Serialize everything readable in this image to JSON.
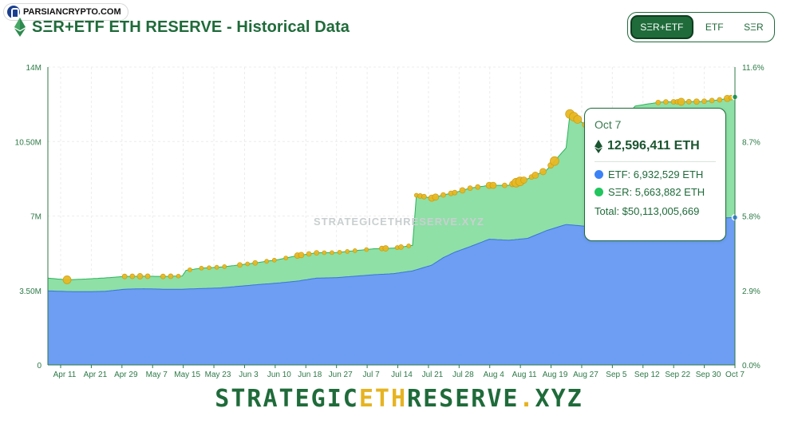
{
  "watermark": {
    "label": "PARSIANCRYPTO.COM",
    "logo_icon": "lock-person-icon"
  },
  "header": {
    "title": "SΞR+ETF ETH RESERVE - Historical Data",
    "icon": "ethereum-icon"
  },
  "toggle": {
    "options": [
      "SΞR+ETF",
      "ETF",
      "SΞR"
    ],
    "active": "SΞR+ETF"
  },
  "tooltip": {
    "date": "Oct 7",
    "total_eth": "12,596,411 ETH",
    "etf_label": "ETF: 6,932,529 ETH",
    "ser_label": "SΞR: 5,663,882 ETH",
    "total_usd": "Total: $50,113,005,669",
    "colors": {
      "etf": "#3b82f6",
      "ser": "#22c55e"
    }
  },
  "footer": {
    "part1": "STRATEGIC",
    "part2": "ETH",
    "part3": "RESERVE",
    "part4": ".",
    "part5": "XYZ"
  },
  "chart_data": {
    "type": "area",
    "watermark_text": "STRATEGICETHRESERVE.XYZ",
    "stacked": true,
    "y_left": {
      "ticks": [
        "0",
        "3.50M",
        "7M",
        "10.50M",
        "14M"
      ],
      "values": [
        0,
        3500000,
        7000000,
        10500000,
        14000000
      ],
      "range": [
        0,
        14000000
      ]
    },
    "y_right": {
      "ticks": [
        "0.0%",
        "2.9%",
        "5.8%",
        "8.7%",
        "11.6%"
      ],
      "values": [
        0.0,
        2.9,
        5.8,
        8.7,
        11.6
      ],
      "range": [
        0,
        11.6
      ]
    },
    "x_ticks": [
      "Apr 11",
      "Apr 21",
      "Apr 29",
      "May 7",
      "May 15",
      "May 23",
      "Jun 3",
      "Jun 10",
      "Jun 18",
      "Jun 27",
      "Jul 7",
      "Jul 14",
      "Jul 21",
      "Jul 28",
      "Aug 4",
      "Aug 11",
      "Aug 19",
      "Aug 27",
      "Sep 5",
      "Sep 12",
      "Sep 22",
      "Sep 30",
      "Oct 7"
    ],
    "x_range": [
      0,
      179
    ],
    "grid": true,
    "colors": {
      "etf": "#6d9ef3",
      "ser": "#8ee0a6",
      "etf_line": "#3b74d9",
      "ser_line": "#2db35a",
      "dot": "#e8b923"
    },
    "series": [
      {
        "name": "ETF",
        "x": [
          0,
          5,
          10,
          15,
          20,
          25,
          30,
          35,
          40,
          45,
          50,
          55,
          60,
          65,
          70,
          75,
          80,
          85,
          90,
          95,
          100,
          103,
          106,
          110,
          115,
          120,
          125,
          130,
          135,
          140,
          145,
          150,
          153,
          156,
          160,
          165,
          170,
          175,
          179
        ],
        "values": [
          3480000,
          3450000,
          3440000,
          3460000,
          3560000,
          3580000,
          3560000,
          3560000,
          3590000,
          3620000,
          3700000,
          3780000,
          3850000,
          3940000,
          4080000,
          4100000,
          4170000,
          4240000,
          4290000,
          4420000,
          4690000,
          5040000,
          5300000,
          5560000,
          5910000,
          5860000,
          5950000,
          6320000,
          6600000,
          6520000,
          6710000,
          6840000,
          6730000,
          6810000,
          6700000,
          6830000,
          6880000,
          6900000,
          6932529
        ]
      },
      {
        "name": "SΞR",
        "x": [
          0,
          5,
          10,
          15,
          20,
          25,
          30,
          35,
          36,
          40,
          45,
          50,
          55,
          60,
          65,
          70,
          75,
          80,
          85,
          90,
          95,
          96,
          100,
          103,
          106,
          110,
          115,
          120,
          125,
          130,
          135,
          136,
          140,
          145,
          150,
          153,
          156,
          160,
          165,
          170,
          175,
          179
        ],
        "values": [
          600000,
          550000,
          600000,
          630000,
          600000,
          590000,
          600000,
          620000,
          880000,
          960000,
          980000,
          1000000,
          1040000,
          1100000,
          1200000,
          1190000,
          1180000,
          1200000,
          1220000,
          1200000,
          1200000,
          3500000,
          3150000,
          2950000,
          2800000,
          2750000,
          2530000,
          2580000,
          2800000,
          2850000,
          3600000,
          5210000,
          4770000,
          4690000,
          4700000,
          5440000,
          5450000,
          5660000,
          5540000,
          5500000,
          5560000,
          5663882
        ]
      }
    ],
    "events": [
      [
        5,
        10
      ],
      [
        20,
        6
      ],
      [
        22,
        6
      ],
      [
        24,
        7
      ],
      [
        26,
        6
      ],
      [
        30,
        6
      ],
      [
        32,
        6
      ],
      [
        34,
        5
      ],
      [
        37,
        5
      ],
      [
        40,
        5
      ],
      [
        42,
        5
      ],
      [
        44,
        5
      ],
      [
        46,
        5
      ],
      [
        50,
        6
      ],
      [
        52,
        5
      ],
      [
        54,
        6
      ],
      [
        57,
        5
      ],
      [
        59,
        5
      ],
      [
        62,
        5
      ],
      [
        65,
        7
      ],
      [
        66,
        7
      ],
      [
        68,
        6
      ],
      [
        70,
        6
      ],
      [
        72,
        5
      ],
      [
        74,
        5
      ],
      [
        76,
        5
      ],
      [
        78,
        5
      ],
      [
        80,
        5
      ],
      [
        83,
        5
      ],
      [
        87,
        6
      ],
      [
        88,
        7
      ],
      [
        91,
        5
      ],
      [
        92,
        6
      ],
      [
        94,
        5
      ],
      [
        96,
        5
      ],
      [
        97,
        6
      ],
      [
        98,
        6
      ],
      [
        100,
        8
      ],
      [
        101,
        8
      ],
      [
        103,
        6
      ],
      [
        105,
        6
      ],
      [
        106,
        6
      ],
      [
        108,
        7
      ],
      [
        110,
        6
      ],
      [
        112,
        6
      ],
      [
        115,
        8
      ],
      [
        116,
        8
      ],
      [
        119,
        6
      ],
      [
        121,
        7
      ],
      [
        122,
        11
      ],
      [
        123,
        11
      ],
      [
        124,
        8
      ],
      [
        126,
        6
      ],
      [
        127,
        8
      ],
      [
        129,
        8
      ],
      [
        131,
        7
      ],
      [
        132,
        11
      ],
      [
        136,
        11
      ],
      [
        137,
        11
      ],
      [
        138,
        10
      ],
      [
        140,
        7
      ],
      [
        142,
        7
      ],
      [
        144,
        6
      ],
      [
        147,
        6
      ],
      [
        150,
        6
      ],
      [
        159,
        6
      ],
      [
        161,
        6
      ],
      [
        163,
        6
      ],
      [
        164,
        6
      ],
      [
        165,
        9
      ],
      [
        167,
        6
      ],
      [
        169,
        7
      ],
      [
        171,
        6
      ],
      [
        173,
        6
      ],
      [
        175,
        6
      ],
      [
        177,
        8
      ],
      [
        178,
        6
      ]
    ]
  }
}
